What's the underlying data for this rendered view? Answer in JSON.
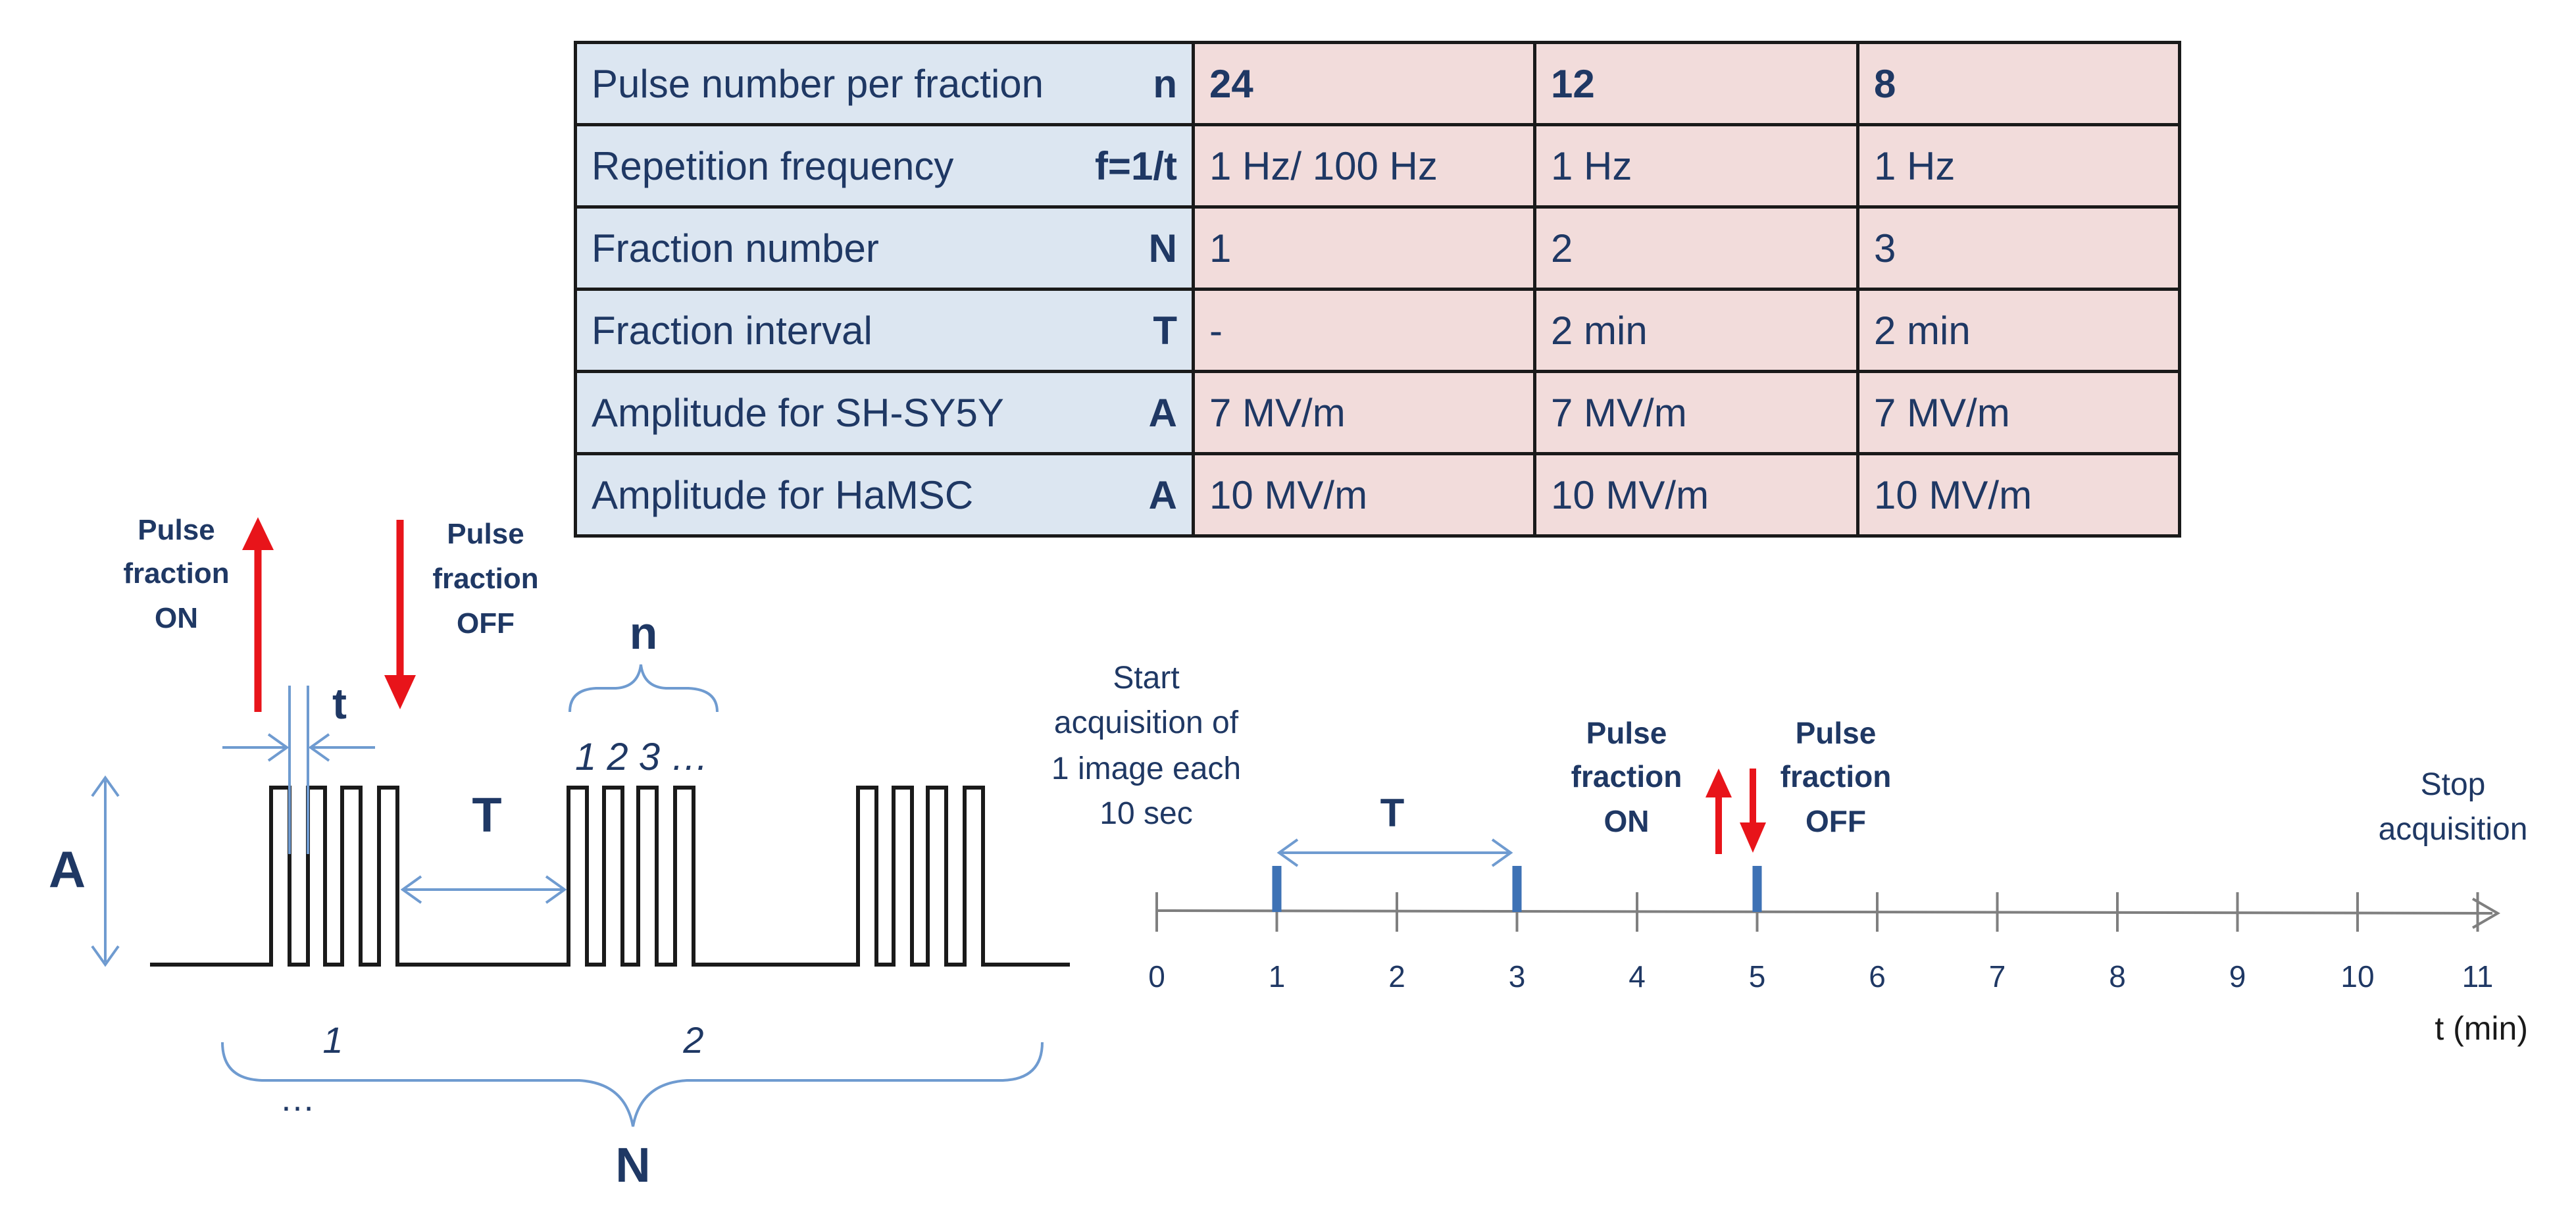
{
  "table": {
    "rows": [
      {
        "label": "Pulse number per fraction",
        "symbol": "n",
        "values": [
          "24",
          "12",
          "8"
        ],
        "bold": true
      },
      {
        "label": "Repetition frequency",
        "symbol": "f=1/t",
        "values": [
          "1 Hz/ 100 Hz",
          "1 Hz",
          "1 Hz"
        ],
        "bold": false
      },
      {
        "label": "Fraction number",
        "symbol": "N",
        "values": [
          "1",
          "2",
          "3"
        ],
        "bold": false
      },
      {
        "label": "Fraction interval",
        "symbol": "T",
        "values": [
          "-",
          "2 min",
          "2 min"
        ],
        "bold": false
      },
      {
        "label": "Amplitude for SH-SY5Y",
        "symbol": "A",
        "values": [
          "7 MV/m",
          "7 MV/m",
          "7 MV/m"
        ],
        "bold": false
      },
      {
        "label": "Amplitude for HaMSC",
        "symbol": "A",
        "values": [
          "10 MV/m",
          "10 MV/m",
          "10 MV/m"
        ],
        "bold": false
      }
    ]
  },
  "pulse_diagram": {
    "on_label": [
      "Pulse",
      "fraction",
      "ON"
    ],
    "off_label": [
      "Pulse",
      "fraction",
      "OFF"
    ],
    "t_label": "t",
    "A_label": "A",
    "T_label": "T",
    "n_label": "n",
    "pulse_index_label": "1 2 3 …",
    "fraction_1_label": "1",
    "fraction_2_label": "2",
    "ellipsis": "…",
    "N_label": "N"
  },
  "timeline": {
    "start_label": [
      "Start",
      "acquisition of",
      "1 image each",
      "10 sec"
    ],
    "T_label": "T",
    "on_label": [
      "Pulse",
      "fraction",
      "ON"
    ],
    "off_label": [
      "Pulse",
      "fraction",
      "OFF"
    ],
    "stop_label": [
      "Stop",
      "acquisition"
    ],
    "axis_label": "t (min)",
    "ticks": [
      "0",
      "1",
      "2",
      "3",
      "4",
      "5",
      "6",
      "7",
      "8",
      "9",
      "10",
      "11"
    ],
    "fraction_marks_min": [
      1,
      3,
      5
    ]
  },
  "colors": {
    "text": "#1f3864",
    "blue_line": "#6f9bd0",
    "mark_blue": "#3e72b5",
    "red_arrow": "#e8141a",
    "label_bg": "#dce6f1",
    "value_bg": "#f2dcdb",
    "axis_gray": "#7f7f7f"
  }
}
